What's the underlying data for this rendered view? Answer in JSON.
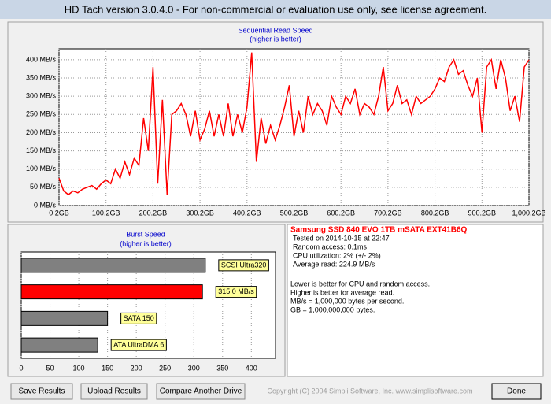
{
  "window": {
    "title": "HD Tach version 3.0.4.0  - For non-commercial or evaluation use only, see license agreement."
  },
  "chart_data": [
    {
      "type": "line",
      "title": "Sequential Read Speed",
      "subtitle": "(higher is better)",
      "x": [
        0.2,
        10.2,
        20.2,
        30.2,
        40.2,
        50.2,
        60.2,
        70.2,
        80.2,
        90.2,
        100.2,
        110.2,
        120.2,
        130.2,
        140.2,
        150.2,
        160.2,
        170.2,
        180.2,
        190.2,
        200.2,
        210.2,
        220.2,
        230.2,
        240.2,
        250.2,
        260.2,
        270.2,
        280.2,
        290.2,
        300.2,
        310.2,
        320.2,
        330.2,
        340.2,
        350.2,
        360.2,
        370.2,
        380.2,
        390.2,
        400.2,
        410.2,
        420.2,
        430.2,
        440.2,
        450.2,
        460.2,
        470.2,
        480.2,
        490.2,
        500.2,
        510.2,
        520.2,
        530.2,
        540.2,
        550.2,
        560.2,
        570.2,
        580.2,
        590.2,
        600.2,
        610.2,
        620.2,
        630.2,
        640.2,
        650.2,
        660.2,
        670.2,
        680.2,
        690.2,
        700.2,
        710.2,
        720.2,
        730.2,
        740.2,
        750.2,
        760.2,
        770.2,
        780.2,
        790.2,
        800.2,
        810.2,
        820.2,
        830.2,
        840.2,
        850.2,
        860.2,
        870.2,
        880.2,
        890.2,
        900.2,
        910.2,
        920.2,
        930.2,
        940.2,
        950.2,
        960.2,
        970.2,
        980.2,
        990.2,
        1000.2
      ],
      "series": [
        {
          "name": "Read",
          "color": "#ff0000",
          "values": [
            75,
            40,
            30,
            40,
            35,
            45,
            50,
            55,
            45,
            60,
            70,
            60,
            100,
            75,
            120,
            85,
            130,
            110,
            240,
            150,
            380,
            60,
            290,
            30,
            250,
            260,
            280,
            250,
            190,
            260,
            180,
            210,
            260,
            190,
            250,
            190,
            280,
            190,
            250,
            200,
            270,
            420,
            120,
            240,
            170,
            220,
            180,
            220,
            270,
            330,
            190,
            260,
            200,
            300,
            250,
            280,
            260,
            220,
            300,
            270,
            250,
            300,
            280,
            320,
            250,
            280,
            270,
            250,
            300,
            380,
            260,
            280,
            330,
            280,
            290,
            250,
            300,
            280,
            290,
            300,
            320,
            350,
            340,
            380,
            400,
            360,
            370,
            330,
            300,
            350,
            200,
            380,
            400,
            320,
            400,
            350,
            260,
            300,
            230,
            380,
            400
          ]
        }
      ],
      "xlim": [
        0.2,
        1000.2
      ],
      "ylim": [
        0,
        430
      ],
      "xticks": [
        {
          "value": 0.2,
          "label": "0.2GB"
        },
        {
          "value": 100.2,
          "label": "100.2GB"
        },
        {
          "value": 200.2,
          "label": "200.2GB"
        },
        {
          "value": 300.2,
          "label": "300.2GB"
        },
        {
          "value": 400.2,
          "label": "400.2GB"
        },
        {
          "value": 500.2,
          "label": "500.2GB"
        },
        {
          "value": 600.2,
          "label": "600.2GB"
        },
        {
          "value": 700.2,
          "label": "700.2GB"
        },
        {
          "value": 800.2,
          "label": "800.2GB"
        },
        {
          "value": 900.2,
          "label": "900.2GB"
        },
        {
          "value": 1000.2,
          "label": "1,000.2GB"
        }
      ],
      "yticks": [
        {
          "value": 0,
          "label": "0 MB/s"
        },
        {
          "value": 50,
          "label": "50 MB/s"
        },
        {
          "value": 100,
          "label": "100 MB/s"
        },
        {
          "value": 150,
          "label": "150 MB/s"
        },
        {
          "value": 200,
          "label": "200 MB/s"
        },
        {
          "value": 250,
          "label": "250 MB/s"
        },
        {
          "value": 300,
          "label": "300 MB/s"
        },
        {
          "value": 350,
          "label": "350 MB/s"
        },
        {
          "value": 400,
          "label": "400 MB/s"
        }
      ],
      "grid": true
    },
    {
      "type": "hbar",
      "title": "Burst Speed",
      "subtitle": "(higher is better)",
      "categories": [
        "SCSI Ultra320",
        null,
        "SATA 150",
        "ATA UltraDMA 6"
      ],
      "values": [
        320,
        315,
        150,
        133
      ],
      "value_labels": [
        null,
        "315.0 MB/s",
        null,
        null
      ],
      "colors": [
        "#808080",
        "#ff0000",
        "#808080",
        "#808080"
      ],
      "xlim": [
        0,
        442
      ],
      "xticks": [
        0,
        50,
        100,
        150,
        200,
        250,
        300,
        350,
        400
      ],
      "grid": true
    }
  ],
  "info": {
    "drive": "Samsung SSD 840 EVO 1TB mSATA EXT41B6Q",
    "lines": [
      "Tested on 2014-10-15 at 22:47",
      "Random access: 0.1ms",
      "CPU utilization: 2% (+/- 2%)",
      "Average read: 224.9 MB/s"
    ],
    "notes": [
      "Lower is better for CPU and random access.",
      "Higher is better for average read.",
      "MB/s = 1,000,000 bytes per second.",
      "GB = 1,000,000,000 bytes."
    ]
  },
  "buttons": [
    "Save Results",
    "Upload Results",
    "Compare Another Drive",
    "Done"
  ],
  "copyright": "Copyright (C) 2004 Simpli Software, Inc. www.simplisoftware.com"
}
